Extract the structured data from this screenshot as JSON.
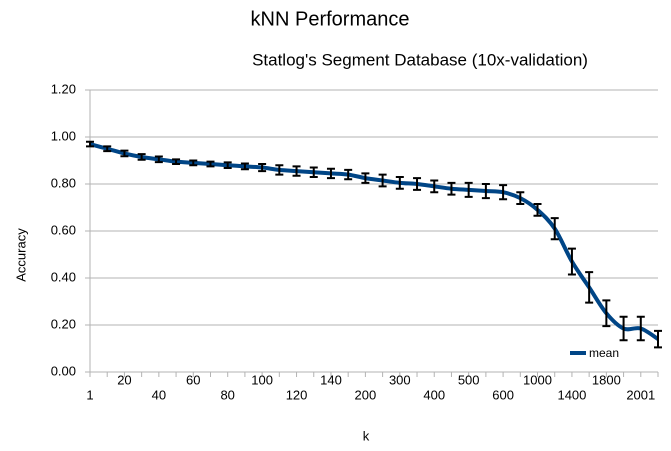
{
  "chart_data": {
    "type": "line",
    "title": "kNN Performance",
    "subtitle": "Statlog's Segment Database (10x-validation)",
    "y_label": "Accuracy",
    "x_label": "k",
    "categories": [
      "1",
      null,
      "20",
      null,
      "40",
      null,
      "60",
      null,
      "80",
      null,
      "100",
      null,
      "120",
      null,
      "140",
      null,
      "200",
      null,
      "300",
      null,
      "400",
      null,
      "500",
      null,
      "600",
      null,
      "1000",
      null,
      "1400",
      null,
      "1800",
      null,
      "2001",
      null
    ],
    "series": [
      {
        "name": "mean",
        "color": "#004586",
        "values": [
          0.97,
          0.95,
          0.93,
          0.915,
          0.905,
          0.895,
          0.89,
          0.885,
          0.88,
          0.875,
          0.87,
          0.86,
          0.855,
          0.85,
          0.845,
          0.84,
          0.825,
          0.815,
          0.805,
          0.8,
          0.79,
          0.78,
          0.775,
          0.77,
          0.765,
          0.74,
          0.69,
          0.61,
          0.47,
          0.36,
          0.25,
          0.185,
          0.185,
          0.14
        ],
        "errors": [
          0.01,
          0.01,
          0.012,
          0.012,
          0.012,
          0.01,
          0.01,
          0.01,
          0.012,
          0.012,
          0.015,
          0.02,
          0.02,
          0.02,
          0.02,
          0.02,
          0.02,
          0.025,
          0.025,
          0.025,
          0.025,
          0.025,
          0.03,
          0.03,
          0.03,
          0.025,
          0.025,
          0.045,
          0.055,
          0.065,
          0.055,
          0.05,
          0.05,
          0.035
        ]
      }
    ],
    "ylim": [
      0,
      1.2
    ],
    "yticks": [
      {
        "value": 0,
        "label": "0.00"
      },
      {
        "value": 0.2,
        "label": "0.20"
      },
      {
        "value": 0.4,
        "label": "0.40"
      },
      {
        "value": 0.6,
        "label": "0.60"
      },
      {
        "value": 0.8,
        "label": "0.80"
      },
      {
        "value": 1.0,
        "label": "1.00"
      },
      {
        "value": 1.2,
        "label": "1.20"
      }
    ],
    "grid": true,
    "legend": "lower right"
  }
}
